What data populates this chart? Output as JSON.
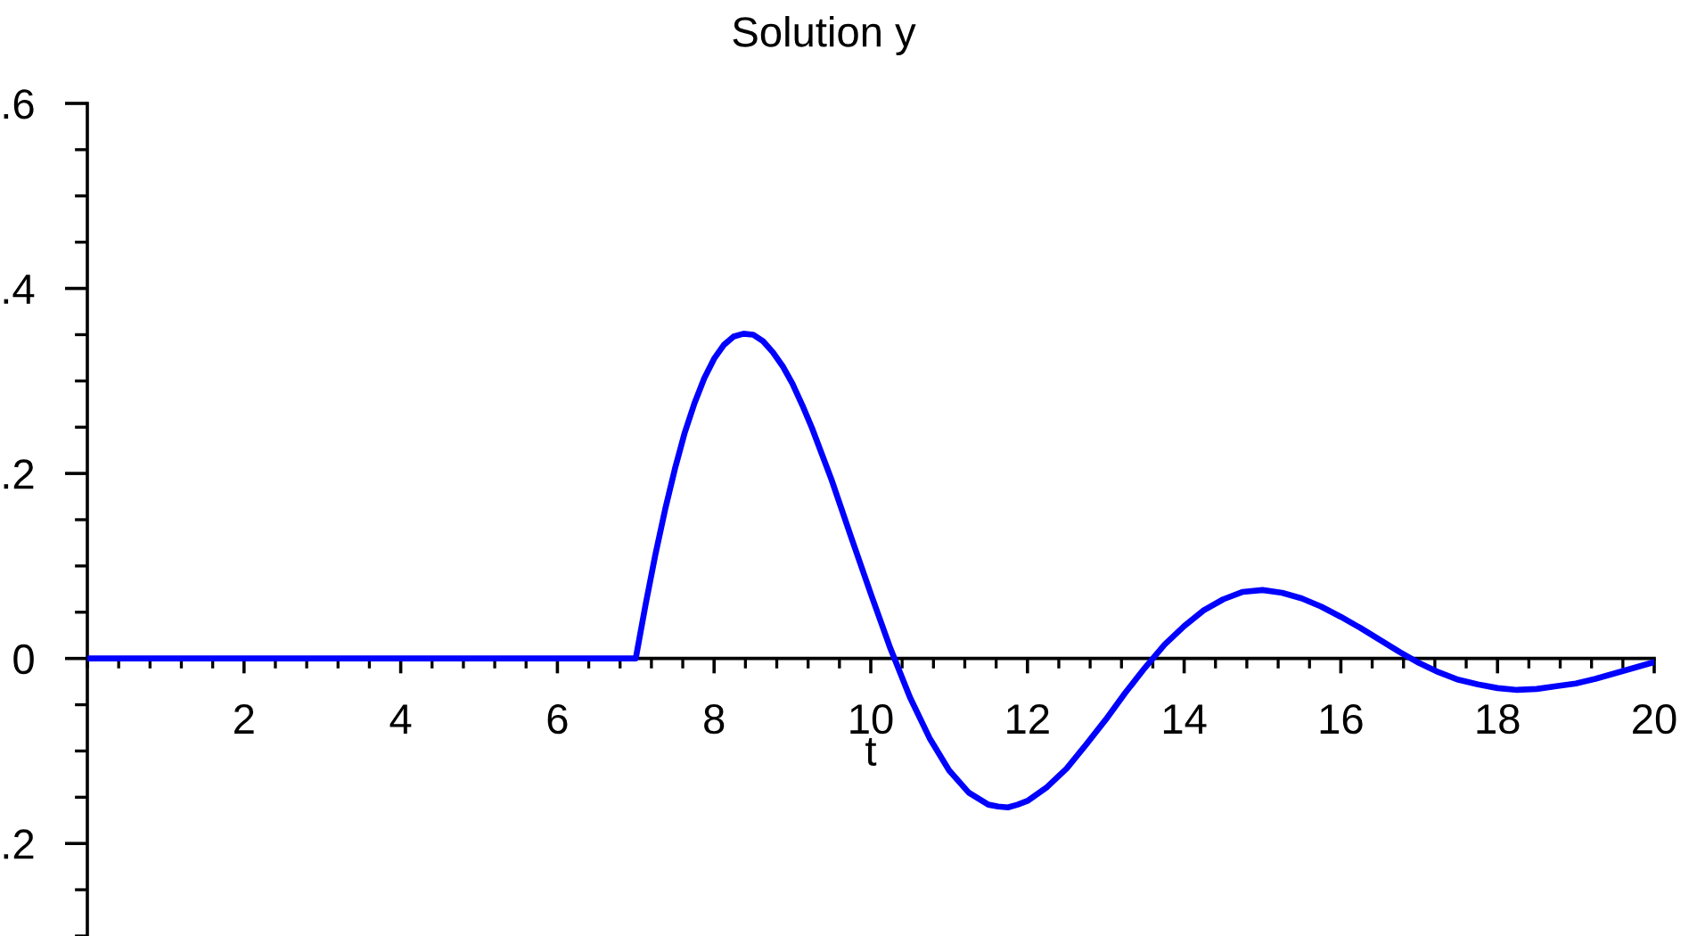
{
  "chart_data": {
    "type": "line",
    "title": "Solution y",
    "xlabel": "t",
    "x": [
      0,
      7,
      7.125,
      7.25,
      7.375,
      7.5,
      7.625,
      7.75,
      7.875,
      8,
      8.125,
      8.25,
      8.375,
      8.5,
      8.625,
      8.75,
      8.875,
      9,
      9.125,
      9.25,
      9.5,
      9.75,
      10,
      10.25,
      10.5,
      10.75,
      11,
      11.25,
      11.5,
      11.625,
      11.75,
      11.875,
      12,
      12.25,
      12.5,
      12.75,
      13,
      13.25,
      13.5,
      13.75,
      14,
      14.25,
      14.5,
      14.75,
      15,
      15.25,
      15.5,
      15.75,
      16,
      16.25,
      16.5,
      16.75,
      17,
      17.25,
      17.5,
      17.75,
      18,
      18.25,
      18.5,
      18.75,
      19,
      19.25,
      19.5,
      19.75,
      20
    ],
    "values": [
      0,
      0,
      0.058,
      0.112,
      0.161,
      0.205,
      0.244,
      0.276,
      0.303,
      0.324,
      0.339,
      0.348,
      0.351,
      0.35,
      0.343,
      0.331,
      0.316,
      0.297,
      0.274,
      0.249,
      0.193,
      0.131,
      0.07,
      0.011,
      -0.042,
      -0.086,
      -0.121,
      -0.145,
      -0.158,
      -0.16,
      -0.161,
      -0.158,
      -0.154,
      -0.139,
      -0.119,
      -0.093,
      -0.066,
      -0.037,
      -0.01,
      0.015,
      0.035,
      0.052,
      0.064,
      0.072,
      0.074,
      0.071,
      0.065,
      0.056,
      0.045,
      0.033,
      0.02,
      0.007,
      -0.005,
      -0.015,
      -0.023,
      -0.028,
      -0.032,
      -0.034,
      -0.033,
      -0.03,
      -0.027,
      -0.022,
      -0.016,
      -0.01,
      -0.004
    ],
    "color": "#0000ff",
    "line_style": "solid",
    "xlim": [
      0,
      20
    ],
    "ylim": [
      -0.3,
      0.6
    ],
    "xticks": [
      2,
      4,
      6,
      8,
      10,
      12,
      14,
      16,
      18,
      20
    ],
    "yticks": [
      {
        "value": 0.6,
        "label": ".6"
      },
      {
        "value": 0.4,
        "label": ".4"
      },
      {
        "value": 0.2,
        "label": ".2"
      },
      0,
      {
        "value": -0.2,
        "label": ".2"
      }
    ]
  }
}
